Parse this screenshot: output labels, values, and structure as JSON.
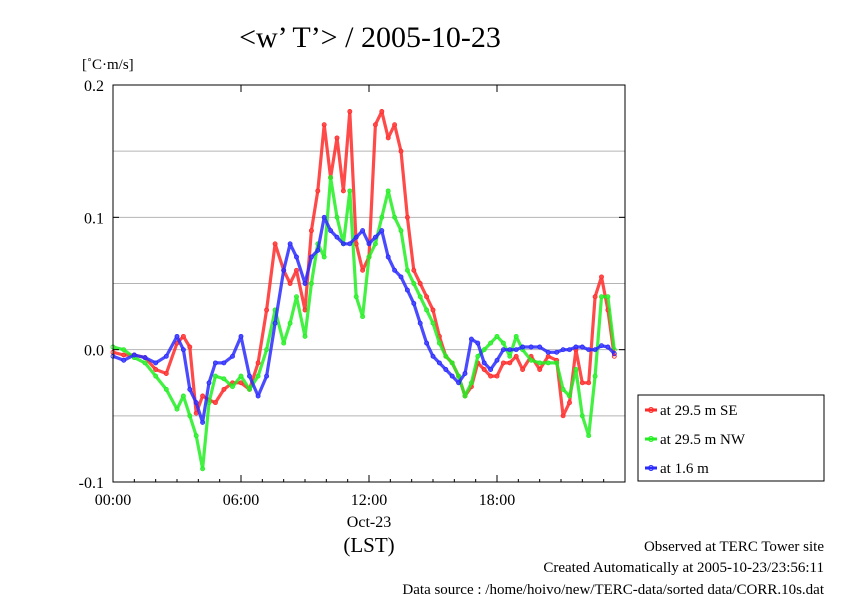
{
  "chart_data": {
    "type": "line",
    "title": "<w’ T’> / 2005-10-23",
    "ylabel": "[˚C·m/s]",
    "xlabel_date": "Oct-23",
    "xlabel_tz": "(LST)",
    "ylim": [
      -0.1,
      0.2
    ],
    "xlim": [
      0,
      24
    ],
    "yticks": [
      {
        "v": -0.1,
        "label": "-0.1"
      },
      {
        "v": 0.0,
        "label": "0.0"
      },
      {
        "v": 0.1,
        "label": "0.1"
      },
      {
        "v": 0.2,
        "label": "0.2"
      }
    ],
    "ygrid": [
      -0.05,
      0.0,
      0.05,
      0.1,
      0.15
    ],
    "xticks": [
      {
        "v": 0,
        "label": "00:00"
      },
      {
        "v": 6,
        "label": "06:00"
      },
      {
        "v": 12,
        "label": "12:00"
      },
      {
        "v": 18,
        "label": "18:00"
      }
    ],
    "legend_position": "right",
    "series": [
      {
        "name": "at 29.5 m SE",
        "color": "#ff2a2a",
        "x": [
          0,
          0.5,
          1,
          1.5,
          2,
          2.5,
          3,
          3.3,
          3.6,
          3.9,
          4.2,
          4.5,
          4.8,
          5.2,
          5.6,
          6,
          6.4,
          6.8,
          7.2,
          7.6,
          8,
          8.3,
          8.6,
          9,
          9.3,
          9.6,
          9.9,
          10.2,
          10.5,
          10.8,
          11.1,
          11.4,
          11.7,
          12,
          12.3,
          12.6,
          12.9,
          13.2,
          13.5,
          13.8,
          14.1,
          14.4,
          14.7,
          15,
          15.3,
          15.6,
          15.9,
          16.2,
          16.5,
          16.8,
          17.1,
          17.4,
          17.7,
          18,
          18.3,
          18.6,
          18.9,
          19.2,
          19.6,
          20,
          20.4,
          20.8,
          21.1,
          21.4,
          21.7,
          22,
          22.3,
          22.6,
          22.9,
          23.2,
          23.5
        ],
        "values": [
          -0.002,
          -0.004,
          -0.004,
          -0.006,
          -0.015,
          -0.018,
          0.005,
          0.01,
          0.002,
          -0.048,
          -0.035,
          -0.038,
          -0.04,
          -0.03,
          -0.025,
          -0.025,
          -0.03,
          -0.01,
          0.03,
          0.08,
          0.06,
          0.05,
          0.06,
          0.03,
          0.09,
          0.12,
          0.17,
          0.13,
          0.16,
          0.12,
          0.18,
          0.08,
          0.06,
          0.07,
          0.17,
          0.18,
          0.16,
          0.17,
          0.15,
          0.1,
          0.06,
          0.05,
          0.04,
          0.03,
          0.01,
          -0.005,
          -0.01,
          -0.02,
          -0.035,
          -0.028,
          -0.01,
          -0.015,
          -0.02,
          -0.02,
          -0.01,
          -0.01,
          -0.005,
          -0.015,
          -0.005,
          -0.015,
          -0.005,
          -0.008,
          -0.05,
          -0.04,
          0.0,
          -0.025,
          -0.025,
          0.04,
          0.055,
          0.03,
          -0.005
        ]
      },
      {
        "name": "at 29.5 m NW",
        "color": "#22ee22",
        "x": [
          0,
          0.5,
          1,
          1.5,
          2,
          2.5,
          3,
          3.3,
          3.6,
          3.9,
          4.2,
          4.5,
          4.8,
          5.2,
          5.6,
          6,
          6.4,
          6.8,
          7.2,
          7.6,
          8,
          8.3,
          8.6,
          9,
          9.3,
          9.6,
          9.9,
          10.2,
          10.5,
          10.8,
          11.1,
          11.4,
          11.7,
          12,
          12.3,
          12.6,
          12.9,
          13.2,
          13.5,
          13.8,
          14.1,
          14.4,
          14.7,
          15,
          15.3,
          15.6,
          15.9,
          16.2,
          16.5,
          16.8,
          17.1,
          17.4,
          17.7,
          18,
          18.3,
          18.6,
          18.9,
          19.2,
          19.6,
          20,
          20.4,
          20.8,
          21.1,
          21.4,
          21.7,
          22,
          22.3,
          22.6,
          22.9,
          23.2,
          23.5
        ],
        "values": [
          0.002,
          0.0,
          -0.006,
          -0.01,
          -0.02,
          -0.03,
          -0.045,
          -0.035,
          -0.05,
          -0.065,
          -0.09,
          -0.04,
          -0.02,
          -0.022,
          -0.028,
          -0.02,
          -0.03,
          -0.02,
          0.0,
          0.03,
          0.005,
          0.02,
          0.04,
          0.01,
          0.05,
          0.08,
          0.07,
          0.13,
          0.1,
          0.08,
          0.12,
          0.04,
          0.025,
          0.07,
          0.08,
          0.1,
          0.12,
          0.1,
          0.09,
          0.06,
          0.05,
          0.04,
          0.03,
          0.02,
          0.005,
          -0.005,
          -0.01,
          -0.02,
          -0.035,
          -0.025,
          -0.005,
          0.0,
          0.005,
          0.01,
          0.005,
          -0.005,
          0.01,
          0.0,
          -0.008,
          -0.01,
          -0.01,
          -0.01,
          -0.03,
          -0.035,
          -0.015,
          -0.05,
          -0.065,
          -0.02,
          0.04,
          0.04,
          0.0
        ]
      },
      {
        "name": "at 1.6 m",
        "color": "#2a2aff",
        "x": [
          0,
          0.5,
          1,
          1.5,
          2,
          2.5,
          3,
          3.3,
          3.6,
          3.9,
          4.2,
          4.5,
          4.8,
          5.2,
          5.6,
          6,
          6.4,
          6.8,
          7.2,
          7.6,
          8,
          8.3,
          8.6,
          9,
          9.3,
          9.6,
          9.9,
          10.2,
          10.5,
          10.8,
          11.1,
          11.4,
          11.7,
          12,
          12.3,
          12.6,
          12.9,
          13.2,
          13.5,
          13.8,
          14.1,
          14.4,
          14.7,
          15,
          15.3,
          15.6,
          15.9,
          16.2,
          16.5,
          16.8,
          17.1,
          17.4,
          17.7,
          18,
          18.3,
          18.6,
          18.9,
          19.2,
          19.6,
          20,
          20.4,
          20.8,
          21.1,
          21.4,
          21.7,
          22,
          22.3,
          22.6,
          22.9,
          23.2,
          23.5
        ],
        "values": [
          -0.005,
          -0.008,
          -0.004,
          -0.006,
          -0.01,
          -0.005,
          0.01,
          0.0,
          -0.03,
          -0.04,
          -0.055,
          -0.025,
          -0.01,
          -0.01,
          -0.005,
          0.01,
          -0.02,
          -0.035,
          -0.02,
          0.02,
          0.06,
          0.08,
          0.07,
          0.05,
          0.07,
          0.075,
          0.1,
          0.09,
          0.085,
          0.08,
          0.08,
          0.085,
          0.09,
          0.08,
          0.085,
          0.09,
          0.07,
          0.06,
          0.055,
          0.045,
          0.035,
          0.02,
          0.005,
          -0.005,
          -0.01,
          -0.015,
          -0.02,
          -0.025,
          -0.018,
          0.008,
          0.005,
          -0.01,
          -0.015,
          -0.008,
          0.0,
          0.0,
          0.0,
          0.002,
          0.002,
          0.002,
          -0.002,
          -0.002,
          0.0,
          0.0,
          0.002,
          0.002,
          0.0,
          0.0,
          0.003,
          0.002,
          -0.003
        ]
      }
    ]
  },
  "footer": {
    "line1": "Observed at TERC Tower site",
    "line2": "Created Automatically at 2005-10-23/23:56:11",
    "line3": "Data source : /home/hoivo/new/TERC-data/sorted  data/CORR.10s.dat"
  }
}
